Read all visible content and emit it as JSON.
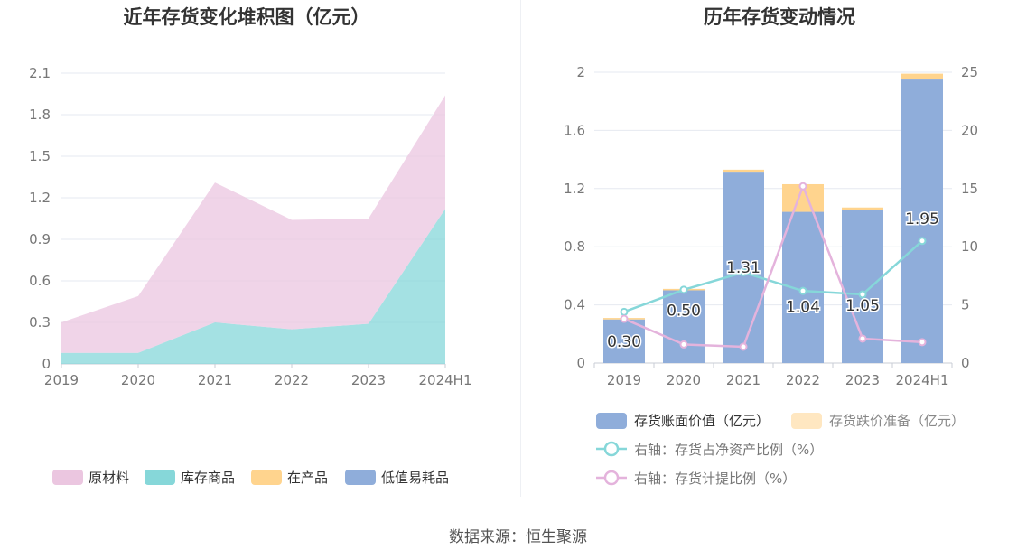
{
  "chart_data": [
    {
      "type": "area",
      "title": "近年存货变化堆积图（亿元）",
      "categories": [
        "2019",
        "2020",
        "2021",
        "2022",
        "2023",
        "2024H1"
      ],
      "stacked": true,
      "y_ticks": [
        "0",
        "0.3",
        "0.6",
        "0.9",
        "1.2",
        "1.5",
        "1.8",
        "2.1"
      ],
      "ylim": [
        0,
        2.1
      ],
      "series": [
        {
          "name": "原材料",
          "color": "#ebc6e0",
          "values": [
            0.22,
            0.41,
            1.01,
            0.79,
            0.76,
            0.82
          ]
        },
        {
          "name": "库存商品",
          "color": "#86d7d9",
          "values": [
            0.08,
            0.08,
            0.3,
            0.25,
            0.29,
            1.12
          ]
        },
        {
          "name": "在产品",
          "color": "#ffd48e",
          "values": [
            0,
            0,
            0,
            0,
            0,
            0
          ]
        },
        {
          "name": "低值易耗品",
          "color": "#8fadda",
          "values": [
            0,
            0,
            0,
            0,
            0,
            0
          ]
        }
      ],
      "legend_position": "bottom",
      "grid": true
    },
    {
      "type": "bar",
      "title": "历年存货变动情况",
      "categories": [
        "2019",
        "2020",
        "2021",
        "2022",
        "2023",
        "2024H1"
      ],
      "y_left_ticks": [
        "0",
        "0.4",
        "0.8",
        "1.2",
        "1.6",
        "2"
      ],
      "y_right_ticks": [
        "0",
        "5",
        "10",
        "15",
        "20",
        "25"
      ],
      "ylim_left": [
        0,
        2
      ],
      "ylim_right": [
        0,
        25
      ],
      "bar_series": [
        {
          "name": "存货账面价值（亿元）",
          "color": "#8fadda",
          "values": [
            0.3,
            0.5,
            1.31,
            1.04,
            1.05,
            1.95
          ],
          "labels": [
            "0.30",
            "0.50",
            "1.31",
            "1.04",
            "1.05",
            "1.95"
          ]
        },
        {
          "name": "存货跌价准备（亿元）",
          "color": "#ffd48e",
          "values": [
            0.01,
            0.01,
            0.02,
            0.19,
            0.02,
            0.04
          ]
        }
      ],
      "line_series": [
        {
          "name": "右轴：存货占净资产比例（%）",
          "color": "#86d7d9",
          "values": [
            4.4,
            6.3,
            7.8,
            6.2,
            5.9,
            10.5
          ]
        },
        {
          "name": "右轴：存货计提比例（%）",
          "color": "#e4b3dc",
          "values": [
            3.8,
            1.6,
            1.4,
            15.2,
            2.1,
            1.8
          ]
        }
      ],
      "legend_position": "bottom",
      "grid": true
    }
  ],
  "source": "数据来源：恒生聚源"
}
